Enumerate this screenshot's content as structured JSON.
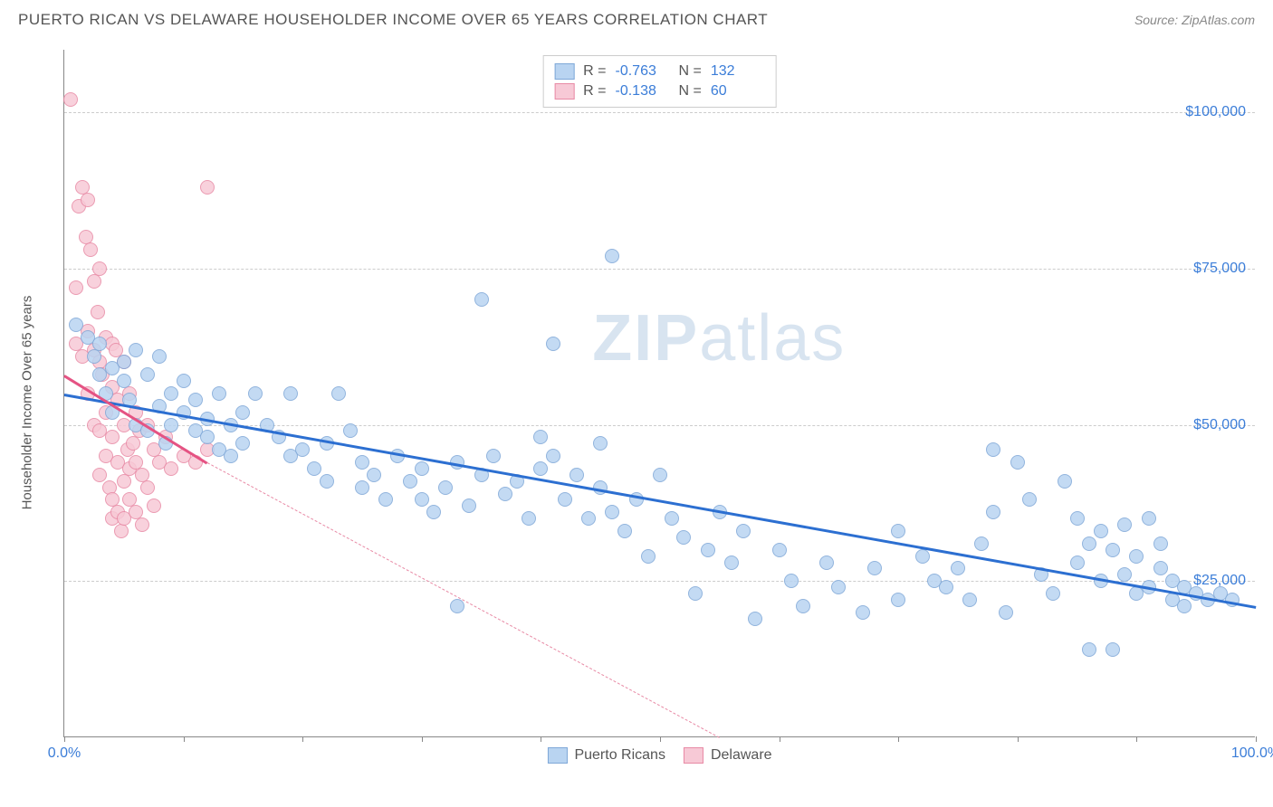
{
  "header": {
    "title": "PUERTO RICAN VS DELAWARE HOUSEHOLDER INCOME OVER 65 YEARS CORRELATION CHART",
    "source": "Source: ZipAtlas.com"
  },
  "chart": {
    "type": "scatter",
    "ylabel": "Householder Income Over 65 years",
    "xlim": [
      0,
      100
    ],
    "ylim": [
      0,
      110000
    ],
    "y_ticks": [
      {
        "value": 25000,
        "label": "$25,000"
      },
      {
        "value": 50000,
        "label": "$50,000"
      },
      {
        "value": 75000,
        "label": "$75,000"
      },
      {
        "value": 100000,
        "label": "$100,000"
      }
    ],
    "x_ticks": [
      0,
      10,
      20,
      30,
      40,
      50,
      60,
      70,
      80,
      90,
      100
    ],
    "x_tick_labels": {
      "0": "0.0%",
      "100": "100.0%"
    },
    "grid_color": "#cccccc",
    "background_color": "#ffffff",
    "marker_radius": 8,
    "watermark": "ZIPatlas",
    "series": [
      {
        "name": "Puerto Ricans",
        "fill": "#b9d4f1",
        "stroke": "#7fa8d8",
        "line_color": "#2c6fd1",
        "R_label": "R =",
        "R": "-0.763",
        "N_label": "N =",
        "N": "132",
        "trend": {
          "x1": 0,
          "y1": 55000,
          "x2": 100,
          "y2": 21000,
          "dash_from_x": 100
        },
        "points": [
          [
            1,
            66000
          ],
          [
            2,
            64000
          ],
          [
            2.5,
            61000
          ],
          [
            3,
            63000
          ],
          [
            3,
            58000
          ],
          [
            3.5,
            55000
          ],
          [
            4,
            59000
          ],
          [
            4,
            52000
          ],
          [
            5,
            60000
          ],
          [
            5,
            57000
          ],
          [
            5.5,
            54000
          ],
          [
            6,
            62000
          ],
          [
            6,
            50000
          ],
          [
            7,
            58000
          ],
          [
            7,
            49000
          ],
          [
            8,
            61000
          ],
          [
            8,
            53000
          ],
          [
            8.5,
            47000
          ],
          [
            9,
            55000
          ],
          [
            9,
            50000
          ],
          [
            10,
            52000
          ],
          [
            10,
            57000
          ],
          [
            11,
            49000
          ],
          [
            11,
            54000
          ],
          [
            12,
            51000
          ],
          [
            12,
            48000
          ],
          [
            13,
            55000
          ],
          [
            13,
            46000
          ],
          [
            14,
            50000
          ],
          [
            14,
            45000
          ],
          [
            15,
            52000
          ],
          [
            15,
            47000
          ],
          [
            16,
            55000
          ],
          [
            17,
            50000
          ],
          [
            18,
            48000
          ],
          [
            19,
            55000
          ],
          [
            19,
            45000
          ],
          [
            20,
            46000
          ],
          [
            21,
            43000
          ],
          [
            22,
            47000
          ],
          [
            22,
            41000
          ],
          [
            23,
            55000
          ],
          [
            24,
            49000
          ],
          [
            25,
            44000
          ],
          [
            25,
            40000
          ],
          [
            26,
            42000
          ],
          [
            27,
            38000
          ],
          [
            28,
            45000
          ],
          [
            29,
            41000
          ],
          [
            30,
            43000
          ],
          [
            30,
            38000
          ],
          [
            31,
            36000
          ],
          [
            32,
            40000
          ],
          [
            33,
            44000
          ],
          [
            33,
            21000
          ],
          [
            34,
            37000
          ],
          [
            35,
            42000
          ],
          [
            35,
            70000
          ],
          [
            36,
            45000
          ],
          [
            37,
            39000
          ],
          [
            38,
            41000
          ],
          [
            39,
            35000
          ],
          [
            40,
            43000
          ],
          [
            40,
            48000
          ],
          [
            41,
            45000
          ],
          [
            41,
            63000
          ],
          [
            42,
            38000
          ],
          [
            43,
            42000
          ],
          [
            44,
            35000
          ],
          [
            45,
            47000
          ],
          [
            45,
            40000
          ],
          [
            46,
            36000
          ],
          [
            46,
            77000
          ],
          [
            47,
            33000
          ],
          [
            48,
            38000
          ],
          [
            49,
            29000
          ],
          [
            50,
            42000
          ],
          [
            51,
            35000
          ],
          [
            52,
            32000
          ],
          [
            53,
            23000
          ],
          [
            54,
            30000
          ],
          [
            55,
            36000
          ],
          [
            56,
            28000
          ],
          [
            57,
            33000
          ],
          [
            58,
            19000
          ],
          [
            60,
            30000
          ],
          [
            61,
            25000
          ],
          [
            62,
            21000
          ],
          [
            64,
            28000
          ],
          [
            65,
            24000
          ],
          [
            67,
            20000
          ],
          [
            68,
            27000
          ],
          [
            70,
            33000
          ],
          [
            70,
            22000
          ],
          [
            72,
            29000
          ],
          [
            73,
            25000
          ],
          [
            74,
            24000
          ],
          [
            75,
            27000
          ],
          [
            76,
            22000
          ],
          [
            77,
            31000
          ],
          [
            78,
            36000
          ],
          [
            78,
            46000
          ],
          [
            79,
            20000
          ],
          [
            80,
            44000
          ],
          [
            81,
            38000
          ],
          [
            82,
            26000
          ],
          [
            83,
            23000
          ],
          [
            84,
            41000
          ],
          [
            85,
            35000
          ],
          [
            85,
            28000
          ],
          [
            86,
            31000
          ],
          [
            86,
            14000
          ],
          [
            87,
            33000
          ],
          [
            87,
            25000
          ],
          [
            88,
            30000
          ],
          [
            88,
            14000
          ],
          [
            89,
            34000
          ],
          [
            89,
            26000
          ],
          [
            90,
            29000
          ],
          [
            90,
            23000
          ],
          [
            91,
            35000
          ],
          [
            91,
            24000
          ],
          [
            92,
            27000
          ],
          [
            92,
            31000
          ],
          [
            93,
            25000
          ],
          [
            93,
            22000
          ],
          [
            94,
            24000
          ],
          [
            94,
            21000
          ],
          [
            95,
            23000
          ],
          [
            96,
            22000
          ],
          [
            97,
            23000
          ],
          [
            98,
            22000
          ]
        ]
      },
      {
        "name": "Delaware",
        "fill": "#f7c9d6",
        "stroke": "#e88aa5",
        "line_color": "#e55383",
        "R_label": "R =",
        "R": "-0.138",
        "N_label": "N =",
        "N": "60",
        "trend": {
          "x1": 0,
          "y1": 58000,
          "x2": 12,
          "y2": 44000,
          "dash_from_x": 12,
          "dash_x2": 55,
          "dash_y2": 0
        },
        "points": [
          [
            0.5,
            102000
          ],
          [
            1,
            72000
          ],
          [
            1,
            63000
          ],
          [
            1.2,
            85000
          ],
          [
            1.5,
            88000
          ],
          [
            1.5,
            61000
          ],
          [
            1.8,
            80000
          ],
          [
            2,
            86000
          ],
          [
            2,
            65000
          ],
          [
            2,
            55000
          ],
          [
            2.2,
            78000
          ],
          [
            2.5,
            73000
          ],
          [
            2.5,
            62000
          ],
          [
            2.5,
            50000
          ],
          [
            2.8,
            68000
          ],
          [
            3,
            75000
          ],
          [
            3,
            60000
          ],
          [
            3,
            49000
          ],
          [
            3,
            42000
          ],
          [
            3.2,
            58000
          ],
          [
            3.5,
            64000
          ],
          [
            3.5,
            52000
          ],
          [
            3.5,
            45000
          ],
          [
            3.8,
            40000
          ],
          [
            4,
            63000
          ],
          [
            4,
            56000
          ],
          [
            4,
            48000
          ],
          [
            4,
            38000
          ],
          [
            4,
            35000
          ],
          [
            4.3,
            62000
          ],
          [
            4.5,
            54000
          ],
          [
            4.5,
            44000
          ],
          [
            4.5,
            36000
          ],
          [
            4.8,
            33000
          ],
          [
            5,
            60000
          ],
          [
            5,
            50000
          ],
          [
            5,
            41000
          ],
          [
            5,
            35000
          ],
          [
            5.3,
            46000
          ],
          [
            5.5,
            55000
          ],
          [
            5.5,
            43000
          ],
          [
            5.5,
            38000
          ],
          [
            5.8,
            47000
          ],
          [
            6,
            52000
          ],
          [
            6,
            44000
          ],
          [
            6,
            36000
          ],
          [
            6.3,
            49000
          ],
          [
            6.5,
            42000
          ],
          [
            6.5,
            34000
          ],
          [
            7,
            50000
          ],
          [
            7,
            40000
          ],
          [
            7.5,
            46000
          ],
          [
            7.5,
            37000
          ],
          [
            8,
            44000
          ],
          [
            8.5,
            48000
          ],
          [
            9,
            43000
          ],
          [
            10,
            45000
          ],
          [
            11,
            44000
          ],
          [
            12,
            46000
          ],
          [
            12,
            88000
          ]
        ]
      }
    ],
    "bottom_legend": [
      {
        "label": "Puerto Ricans",
        "fill": "#b9d4f1",
        "stroke": "#7fa8d8"
      },
      {
        "label": "Delaware",
        "fill": "#f7c9d6",
        "stroke": "#e88aa5"
      }
    ]
  }
}
